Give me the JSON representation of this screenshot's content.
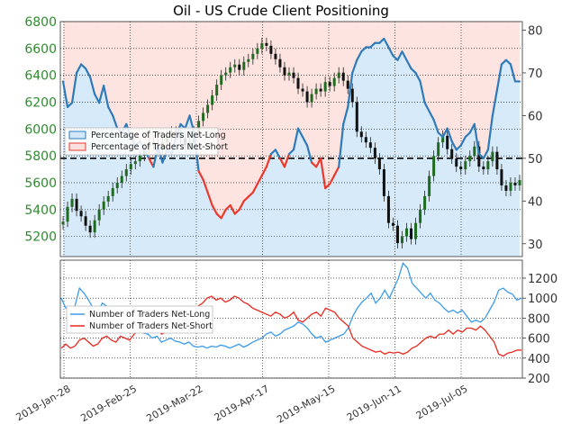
{
  "chart_data": [
    {
      "type": "line",
      "title": "Oil - US Crude Client Positioning",
      "left_axis": {
        "ticks": [
          5200,
          5400,
          5600,
          5800,
          6000,
          6200,
          6400,
          6600,
          6800
        ],
        "range": [
          5050,
          6800
        ]
      },
      "right_axis": {
        "ticks": [
          30,
          40,
          50,
          60,
          70,
          80
        ],
        "range": [
          27,
          82
        ]
      },
      "reference_level": 50,
      "legend": [
        "Percentage of Traders Net-Long",
        "Percentage of Traders Net-Short"
      ],
      "price_series": {
        "name": "Oil Price",
        "values": [
          5310,
          5420,
          5480,
          5390,
          5350,
          5280,
          5230,
          5320,
          5400,
          5460,
          5500,
          5560,
          5600,
          5650,
          5700,
          5740,
          5760,
          5800,
          5860,
          5900,
          5880,
          5850,
          5900,
          5950,
          5980,
          5960,
          5930,
          5880,
          5900,
          5980,
          6060,
          6120,
          6180,
          6250,
          6330,
          6400,
          6420,
          6460,
          6480,
          6440,
          6500,
          6520,
          6560,
          6600,
          6640,
          6620,
          6560,
          6520,
          6460,
          6400,
          6420,
          6380,
          6300,
          6280,
          6200,
          6260,
          6300,
          6280,
          6350,
          6320,
          6380,
          6420,
          6360,
          6300,
          6200,
          5980,
          5940,
          5900,
          5860,
          5780,
          5700,
          5500,
          5300,
          5280,
          5150,
          5200,
          5260,
          5180,
          5300,
          5400,
          5500,
          5650,
          5800,
          5900,
          5950,
          5850,
          5780,
          5720,
          5700,
          5760,
          5800,
          5870,
          5720,
          5700,
          5760,
          5830,
          5700,
          5580,
          5540,
          5600,
          5580,
          5620
        ]
      },
      "net_long_pct_series": {
        "name": "Percentage of Traders Net-Long",
        "values": [
          68,
          62,
          63,
          70,
          72,
          71,
          69,
          65,
          63,
          67,
          62,
          60,
          57,
          56,
          58,
          55,
          53,
          54,
          52,
          50,
          48,
          53,
          49,
          52,
          51,
          55,
          58,
          57,
          60,
          56,
          47,
          45,
          42,
          39,
          37,
          36,
          38,
          39,
          37,
          38,
          40,
          41,
          42,
          44,
          46,
          48,
          51,
          52,
          50,
          48,
          51,
          52,
          57,
          55,
          53,
          49,
          48,
          50,
          43,
          44,
          46,
          48,
          58,
          62,
          70,
          73,
          75,
          76,
          76,
          77,
          77,
          78,
          76,
          74,
          73,
          75,
          73,
          71,
          70,
          68,
          63,
          61,
          59,
          56,
          55,
          57,
          54,
          52,
          53,
          55,
          56,
          58,
          51,
          50,
          52,
          60,
          66,
          72,
          73,
          72,
          68,
          68
        ]
      }
    },
    {
      "type": "line",
      "right_axis": {
        "ticks": [
          200,
          400,
          600,
          800,
          1000,
          1200
        ],
        "range": [
          200,
          1380
        ]
      },
      "legend": [
        "Number of Traders Net-Long",
        "Number of Traders Net-Short"
      ],
      "series": [
        {
          "name": "Number of Traders Net-Long",
          "values": [
            1000,
            900,
            880,
            920,
            1100,
            1050,
            980,
            900,
            850,
            950,
            920,
            820,
            780,
            760,
            800,
            720,
            700,
            680,
            650,
            640,
            600,
            620,
            560,
            580,
            600,
            570,
            560,
            540,
            560,
            520,
            510,
            520,
            500,
            520,
            510,
            530,
            520,
            500,
            520,
            540,
            510,
            530,
            560,
            580,
            600,
            640,
            660,
            620,
            640,
            680,
            700,
            720,
            760,
            740,
            700,
            640,
            600,
            620,
            560,
            580,
            600,
            620,
            640,
            700,
            820,
            900,
            960,
            1000,
            1050,
            950,
            1000,
            1080,
            1000,
            1100,
            1200,
            1350,
            1300,
            1150,
            1100,
            1050,
            1000,
            1050,
            980,
            950,
            900,
            860,
            880,
            850,
            880,
            820,
            760,
            780,
            760,
            800,
            880,
            960,
            1080,
            1100,
            1060,
            1040,
            980,
            1000
          ]
        },
        {
          "name": "Number of Traders Net-Short",
          "values": [
            500,
            540,
            500,
            520,
            580,
            600,
            560,
            520,
            540,
            600,
            620,
            580,
            560,
            620,
            600,
            580,
            640,
            680,
            700,
            720,
            680,
            700,
            640,
            660,
            720,
            760,
            740,
            720,
            760,
            820,
            920,
            950,
            1000,
            1020,
            980,
            1000,
            960,
            980,
            1020,
            1000,
            960,
            940,
            900,
            880,
            860,
            840,
            820,
            860,
            840,
            800,
            820,
            860,
            780,
            760,
            800,
            840,
            860,
            820,
            900,
            880,
            860,
            800,
            760,
            720,
            600,
            560,
            520,
            500,
            480,
            460,
            470,
            440,
            460,
            450,
            460,
            440,
            460,
            500,
            520,
            560,
            600,
            620,
            600,
            640,
            640,
            680,
            640,
            680,
            660,
            700,
            700,
            680,
            720,
            680,
            620,
            560,
            440,
            420,
            450,
            460,
            480,
            480
          ]
        }
      ]
    }
  ],
  "x_axis": {
    "tick_labels": [
      "2019-Jan-28",
      "2019-Feb-25",
      "2019-Mar-22",
      "2019-Apr-17",
      "2019-May-15",
      "2019-Jun-11",
      "2019-Jul-05"
    ]
  },
  "colors": {
    "net_long": "#2f7ab8",
    "net_short": "#e8392f",
    "price": "#1f6b1f",
    "long_fill": "#d2e8f8",
    "short_fill": "#fde1de",
    "left_tick": "#2e8b2e",
    "count_long": "#3d9be9",
    "count_short": "#e8291f"
  }
}
